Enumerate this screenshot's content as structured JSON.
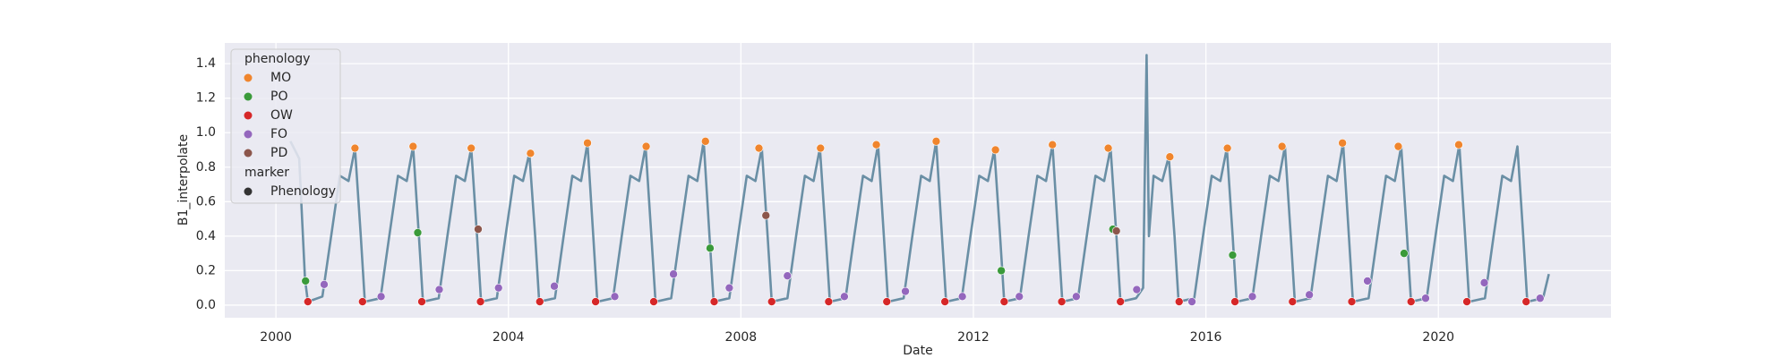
{
  "chart_data": {
    "type": "line",
    "xlabel": "Date",
    "ylabel": "B1_interpolate",
    "xlim": [
      1999.12,
      2022.97
    ],
    "ylim": [
      -0.073,
      1.52
    ],
    "xticks": [
      2000,
      2004,
      2008,
      2012,
      2016,
      2020
    ],
    "yticks": [
      {
        "value": 0,
        "label": "0.0"
      },
      0.2,
      0.4,
      0.6,
      0.8,
      {
        "value": 1,
        "label": "1.0"
      },
      1.2,
      1.4
    ],
    "grid": true,
    "legend": "upper left",
    "line": {
      "color": "#6a8fa5",
      "x": [
        2000.25,
        2000.4,
        2000.5,
        2000.55,
        2000.8,
        2000.95,
        2001.1,
        2001.25,
        2001.36,
        2001.46,
        2001.53,
        2001.8,
        2001.95,
        2002.1,
        2002.25,
        2002.36,
        2002.46,
        2002.53,
        2002.8,
        2002.95,
        2003.1,
        2003.25,
        2003.36,
        2003.46,
        2003.53,
        2003.8,
        2003.95,
        2004.1,
        2004.25,
        2004.36,
        2004.46,
        2004.53,
        2004.8,
        2004.95,
        2005.1,
        2005.25,
        2005.36,
        2005.46,
        2005.53,
        2005.8,
        2005.95,
        2006.1,
        2006.25,
        2006.36,
        2006.46,
        2006.53,
        2006.8,
        2006.95,
        2007.1,
        2007.25,
        2007.36,
        2007.46,
        2007.53,
        2007.8,
        2007.95,
        2008.1,
        2008.25,
        2008.36,
        2008.46,
        2008.53,
        2008.8,
        2008.95,
        2009.1,
        2009.25,
        2009.36,
        2009.46,
        2009.53,
        2009.8,
        2009.95,
        2010.1,
        2010.25,
        2010.36,
        2010.46,
        2010.53,
        2010.8,
        2010.95,
        2011.1,
        2011.25,
        2011.36,
        2011.46,
        2011.53,
        2011.8,
        2011.95,
        2012.1,
        2012.25,
        2012.36,
        2012.46,
        2012.53,
        2012.8,
        2012.95,
        2013.1,
        2013.25,
        2013.36,
        2013.46,
        2013.53,
        2013.8,
        2013.95,
        2014.1,
        2014.25,
        2014.36,
        2014.46,
        2014.53,
        2014.8,
        2014.92,
        2014.98,
        2015.02,
        2015.1,
        2015.25,
        2015.36,
        2015.46,
        2015.53,
        2015.8,
        2015.95,
        2016.1,
        2016.25,
        2016.36,
        2016.46,
        2016.53,
        2016.8,
        2016.95,
        2017.1,
        2017.25,
        2017.36,
        2017.46,
        2017.53,
        2017.8,
        2017.95,
        2018.1,
        2018.25,
        2018.36,
        2018.46,
        2018.53,
        2018.8,
        2018.95,
        2019.1,
        2019.25,
        2019.36,
        2019.46,
        2019.53,
        2019.8,
        2019.95,
        2020.1,
        2020.25,
        2020.36,
        2020.46,
        2020.53,
        2020.8,
        2020.95,
        2021.1,
        2021.25,
        2021.36,
        2021.46,
        2021.53,
        2021.8,
        2021.9
      ],
      "values": [
        0.95,
        0.85,
        0.15,
        0.02,
        0.05,
        0.4,
        0.75,
        0.72,
        0.91,
        0.4,
        0.02,
        0.04,
        0.4,
        0.75,
        0.72,
        0.92,
        0.4,
        0.02,
        0.04,
        0.4,
        0.75,
        0.72,
        0.91,
        0.4,
        0.02,
        0.04,
        0.4,
        0.75,
        0.72,
        0.88,
        0.4,
        0.02,
        0.04,
        0.4,
        0.75,
        0.72,
        0.94,
        0.4,
        0.02,
        0.04,
        0.4,
        0.75,
        0.72,
        0.92,
        0.4,
        0.02,
        0.04,
        0.4,
        0.75,
        0.72,
        0.95,
        0.4,
        0.02,
        0.04,
        0.4,
        0.75,
        0.72,
        0.91,
        0.4,
        0.02,
        0.04,
        0.4,
        0.75,
        0.72,
        0.91,
        0.4,
        0.02,
        0.04,
        0.4,
        0.75,
        0.72,
        0.93,
        0.4,
        0.02,
        0.04,
        0.4,
        0.75,
        0.72,
        0.95,
        0.4,
        0.02,
        0.04,
        0.4,
        0.75,
        0.72,
        0.9,
        0.4,
        0.02,
        0.04,
        0.4,
        0.75,
        0.72,
        0.93,
        0.4,
        0.02,
        0.04,
        0.4,
        0.75,
        0.72,
        0.91,
        0.4,
        0.02,
        0.04,
        0.1,
        1.45,
        0.4,
        0.75,
        0.72,
        0.86,
        0.4,
        0.02,
        0.04,
        0.4,
        0.75,
        0.72,
        0.91,
        0.4,
        0.02,
        0.04,
        0.4,
        0.75,
        0.72,
        0.92,
        0.4,
        0.02,
        0.04,
        0.4,
        0.75,
        0.72,
        0.94,
        0.4,
        0.02,
        0.04,
        0.4,
        0.75,
        0.72,
        0.92,
        0.4,
        0.02,
        0.04,
        0.4,
        0.75,
        0.72,
        0.93,
        0.4,
        0.02,
        0.04,
        0.4,
        0.75,
        0.72,
        0.92,
        0.4,
        0.02,
        0.04,
        0.18
      ]
    },
    "phenology": {
      "title": "phenology",
      "series": [
        {
          "name": "MO",
          "color": "#f0852d",
          "x": [
            2001.36,
            2002.36,
            2003.36,
            2004.38,
            2005.36,
            2006.37,
            2007.39,
            2008.31,
            2009.37,
            2010.33,
            2011.36,
            2012.38,
            2013.36,
            2014.32,
            2015.38,
            2016.37,
            2017.31,
            2018.35,
            2019.31,
            2020.35
          ],
          "values": [
            0.91,
            0.92,
            0.91,
            0.88,
            0.94,
            0.92,
            0.95,
            0.91,
            0.91,
            0.93,
            0.95,
            0.9,
            0.93,
            0.91,
            0.86,
            0.91,
            0.92,
            0.94,
            0.92,
            0.93
          ]
        },
        {
          "name": "PO",
          "color": "#3a9a3a",
          "x": [
            2000.51,
            2002.44,
            2007.47,
            2012.48,
            2014.4,
            2016.46,
            2019.41
          ],
          "values": [
            0.14,
            0.42,
            0.33,
            0.2,
            0.44,
            0.29,
            0.3
          ]
        },
        {
          "name": "OW",
          "color": "#d62728",
          "x": [
            2000.55,
            2001.49,
            2002.51,
            2003.52,
            2004.54,
            2005.5,
            2006.5,
            2007.54,
            2008.53,
            2009.51,
            2010.51,
            2011.51,
            2012.53,
            2013.52,
            2014.53,
            2015.54,
            2016.5,
            2017.49,
            2018.51,
            2019.53,
            2020.49,
            2021.51
          ],
          "values": [
            0.02,
            0.02,
            0.02,
            0.02,
            0.02,
            0.02,
            0.02,
            0.02,
            0.02,
            0.02,
            0.02,
            0.02,
            0.02,
            0.02,
            0.02,
            0.02,
            0.02,
            0.02,
            0.02,
            0.02,
            0.02,
            0.02
          ]
        },
        {
          "name": "FO",
          "color": "#9467bd",
          "x": [
            2000.83,
            2001.81,
            2002.81,
            2003.83,
            2004.79,
            2005.83,
            2006.84,
            2007.8,
            2008.8,
            2009.78,
            2010.83,
            2011.81,
            2012.79,
            2013.77,
            2014.81,
            2015.76,
            2016.8,
            2017.78,
            2018.78,
            2019.78,
            2020.79,
            2021.75
          ],
          "values": [
            0.12,
            0.05,
            0.09,
            0.1,
            0.11,
            0.05,
            0.18,
            0.1,
            0.17,
            0.05,
            0.08,
            0.05,
            0.05,
            0.05,
            0.09,
            0.02,
            0.05,
            0.06,
            0.14,
            0.04,
            0.13,
            0.04
          ]
        },
        {
          "name": "PD",
          "color": "#8c564b",
          "x": [
            2003.48,
            2008.43,
            2014.46
          ],
          "values": [
            0.44,
            0.52,
            0.43
          ]
        }
      ]
    },
    "marker": {
      "title": "marker",
      "name": "Phenology",
      "color": "#333333"
    }
  }
}
